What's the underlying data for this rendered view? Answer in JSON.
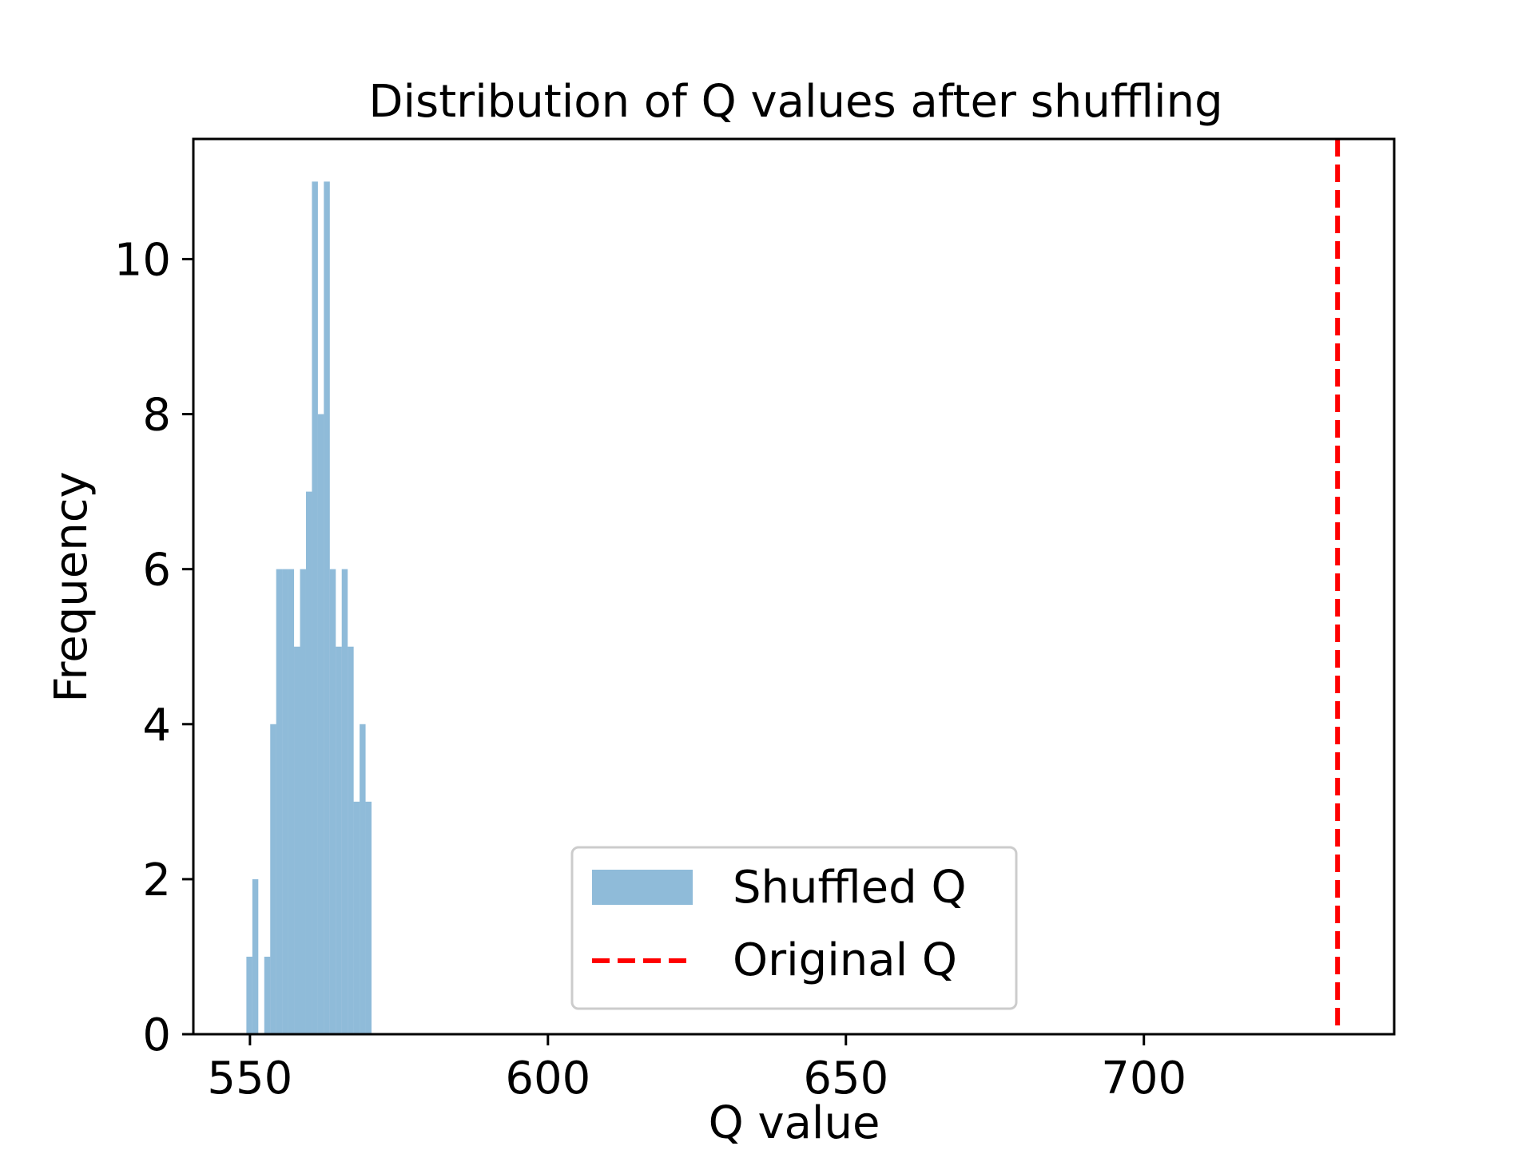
{
  "chart_data": {
    "type": "histogram",
    "title": "Distribution of Q values after shuffling",
    "xlabel": "Q value",
    "ylabel": "Frequency",
    "xlim": [
      540.5,
      742
    ],
    "ylim": [
      0,
      11.55
    ],
    "xticks": [
      550,
      600,
      650,
      700
    ],
    "yticks": [
      0,
      2,
      4,
      6,
      8,
      10
    ],
    "grid": false,
    "legend_position": "lower center",
    "series": [
      {
        "name": "Shuffled Q",
        "kind": "histogram",
        "color": "#1f77b4",
        "alpha": 0.5,
        "bin_start": 549.4,
        "bin_width": 1.0,
        "counts": [
          1,
          2,
          0,
          1,
          4,
          6,
          6,
          6,
          5,
          6,
          7,
          11,
          8,
          11,
          6,
          5,
          6,
          5,
          3,
          4,
          3
        ]
      },
      {
        "name": "Original Q",
        "kind": "vline",
        "color": "#ff0000",
        "linestyle": "dashed",
        "x": 732.5
      }
    ]
  }
}
